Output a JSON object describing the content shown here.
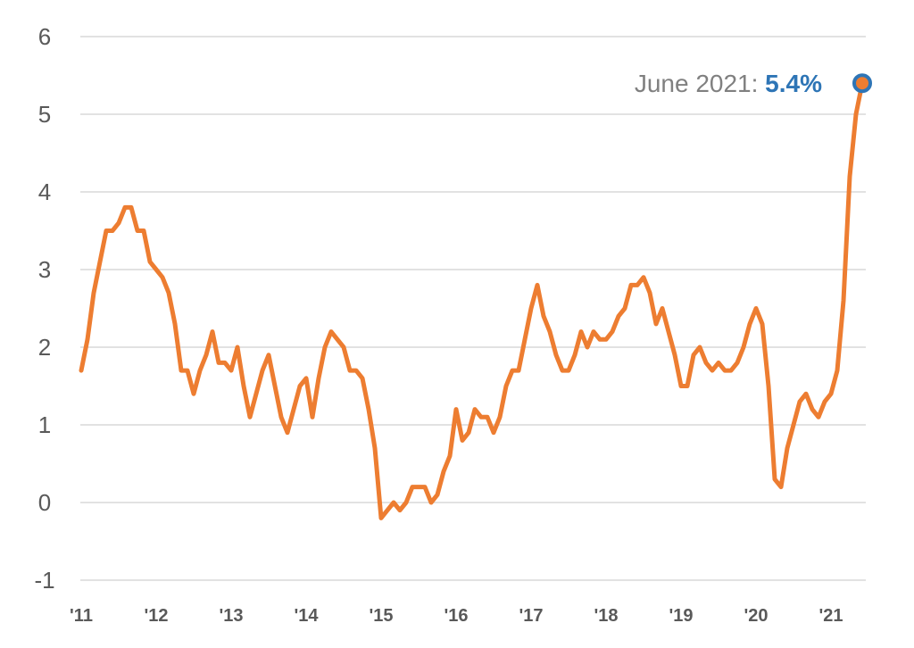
{
  "chart_data": {
    "type": "line",
    "title": "",
    "xlabel": "",
    "ylabel": "",
    "ylim": [
      -1,
      6
    ],
    "y_ticks": [
      -1,
      0,
      1,
      2,
      3,
      4,
      5,
      6
    ],
    "y_tick_labels": [
      "-1",
      "0",
      "1",
      "2",
      "3",
      "4",
      "5",
      "6"
    ],
    "x_tick_labels": [
      "'11",
      "'12",
      "'13",
      "'14",
      "'15",
      "'16",
      "'17",
      "'18",
      "'19",
      "'20",
      "'21"
    ],
    "grid": "horizontal",
    "legend": "none",
    "colors": {
      "line": "#ED7D31",
      "marker_edge": "#2E75B6",
      "grid": "#D9D9D9",
      "text": "#595959"
    },
    "series": [
      {
        "start": "2011-01",
        "frequency": "monthly",
        "values": [
          1.7,
          2.1,
          2.7,
          3.1,
          3.5,
          3.5,
          3.6,
          3.8,
          3.8,
          3.5,
          3.5,
          3.1,
          3.0,
          2.9,
          2.7,
          2.3,
          1.7,
          1.7,
          1.4,
          1.7,
          1.9,
          2.2,
          1.8,
          1.8,
          1.7,
          2.0,
          1.5,
          1.1,
          1.4,
          1.7,
          1.9,
          1.5,
          1.1,
          0.9,
          1.2,
          1.5,
          1.6,
          1.1,
          1.6,
          2.0,
          2.2,
          2.1,
          2.0,
          1.7,
          1.7,
          1.6,
          1.2,
          0.7,
          -0.2,
          -0.1,
          0.0,
          -0.1,
          0.0,
          0.2,
          0.2,
          0.2,
          0.0,
          0.1,
          0.4,
          0.6,
          1.2,
          0.8,
          0.9,
          1.2,
          1.1,
          1.1,
          0.9,
          1.1,
          1.5,
          1.7,
          1.7,
          2.1,
          2.5,
          2.8,
          2.4,
          2.2,
          1.9,
          1.7,
          1.7,
          1.9,
          2.2,
          2.0,
          2.2,
          2.1,
          2.1,
          2.2,
          2.4,
          2.5,
          2.8,
          2.8,
          2.9,
          2.7,
          2.3,
          2.5,
          2.2,
          1.9,
          1.5,
          1.5,
          1.9,
          2.0,
          1.8,
          1.7,
          1.8,
          1.7,
          1.7,
          1.8,
          2.0,
          2.3,
          2.5,
          2.3,
          1.5,
          0.3,
          0.2,
          0.7,
          1.0,
          1.3,
          1.4,
          1.2,
          1.1,
          1.3,
          1.4,
          1.7,
          2.6,
          4.2,
          5.0,
          5.4
        ]
      }
    ],
    "annotation": {
      "prefix": "June 2021: ",
      "value_text": "5.4%",
      "date": "2021-06",
      "value": 5.4
    }
  }
}
